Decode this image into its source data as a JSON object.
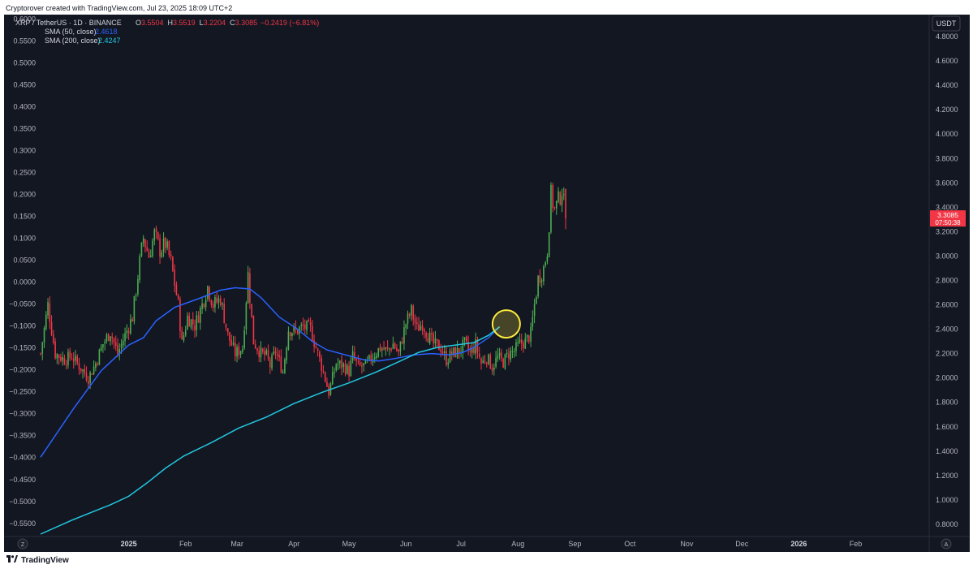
{
  "header": {
    "credit": "Cryptorover created with TradingView.com, Jul 23, 2025 18:09 UTC+2"
  },
  "footer": {
    "brand": "TradingView",
    "brand_icon": "tradingview-logo-icon"
  },
  "legend": {
    "symbol": "XRP / TetherUS · 1D · BINANCE",
    "ohlc": [
      {
        "key": "O",
        "value": "3.5504"
      },
      {
        "key": "H",
        "value": "3.5519"
      },
      {
        "key": "L",
        "value": "3.2204"
      },
      {
        "key": "C",
        "value": "3.3085"
      }
    ],
    "change": "−0.2419 (−6.81%)",
    "indicators": [
      {
        "label": "SMA (50, close)",
        "value": "2.4618",
        "color": "#2962ff"
      },
      {
        "label": "SMA (200, close)",
        "value": "2.4247",
        "color": "#22c7e0"
      }
    ]
  },
  "colors": {
    "up": "#4caf50",
    "down": "#f23645",
    "background": "#131722",
    "sma50": "#2962ff",
    "sma200": "#22c7e0",
    "highlight": "#ffeb3b"
  },
  "chart_data": {
    "type": "candlestick",
    "title": "XRP / TetherUS · 1D · BINANCE",
    "currency": "USDT",
    "last_price": {
      "value": "3.3085",
      "countdown": "07:50:38"
    },
    "right_axis": {
      "ticks": [
        "4.8000",
        "4.6000",
        "4.4000",
        "4.2000",
        "4.0000",
        "3.8000",
        "3.6000",
        "3.4000",
        "3.2000",
        "3.0000",
        "2.8000",
        "2.6000",
        "2.4000",
        "2.2000",
        "2.0000",
        "1.8000",
        "1.6000",
        "1.4000",
        "1.2000",
        "1.0000",
        "0.8000"
      ],
      "range": [
        0.7,
        4.98
      ]
    },
    "left_axis": {
      "ticks": [
        "0.6000",
        "0.5500",
        "0.5000",
        "0.4500",
        "0.4000",
        "0.3500",
        "0.3000",
        "0.2500",
        "0.2000",
        "0.1500",
        "0.1000",
        "0.0500",
        "0.0000",
        "−0.0500",
        "−0.1000",
        "−0.1500",
        "−0.2000",
        "−0.2500",
        "−0.3000",
        "−0.3500",
        "−0.4000",
        "−0.4500",
        "−0.5000",
        "−0.5500"
      ],
      "range": [
        -0.58,
        0.61
      ]
    },
    "x_axis": {
      "labels": [
        "Z",
        "2025",
        "Feb",
        "Mar",
        "Apr",
        "May",
        "Jun",
        "Jul",
        "Aug",
        "Sep",
        "Oct",
        "Nov",
        "Dec",
        "2026",
        "Feb",
        "A"
      ]
    },
    "x_range_days": [
      -48,
      436
    ],
    "day0": "2025-01-01",
    "series": [
      {
        "name": "SMA (50, close)",
        "color": "#2962ff",
        "points": [
          [
            -48,
            1.35
          ],
          [
            -30,
            1.75
          ],
          [
            -15,
            2.06
          ],
          [
            -5,
            2.2
          ],
          [
            0,
            2.27
          ],
          [
            8,
            2.33
          ],
          [
            15,
            2.47
          ],
          [
            25,
            2.58
          ],
          [
            38,
            2.65
          ],
          [
            50,
            2.72
          ],
          [
            58,
            2.74
          ],
          [
            66,
            2.73
          ],
          [
            72,
            2.66
          ],
          [
            82,
            2.5
          ],
          [
            92,
            2.4
          ],
          [
            100,
            2.3
          ],
          [
            108,
            2.23
          ],
          [
            118,
            2.19
          ],
          [
            128,
            2.15
          ],
          [
            136,
            2.14
          ],
          [
            145,
            2.16
          ],
          [
            155,
            2.19
          ],
          [
            165,
            2.2
          ],
          [
            175,
            2.19
          ],
          [
            182,
            2.21
          ],
          [
            188,
            2.25
          ],
          [
            196,
            2.33
          ],
          [
            202,
            2.42
          ]
        ]
      },
      {
        "name": "SMA (200, close)",
        "color": "#22c7e0",
        "points": [
          [
            -48,
            0.72
          ],
          [
            -30,
            0.84
          ],
          [
            -10,
            0.96
          ],
          [
            0,
            1.03
          ],
          [
            10,
            1.14
          ],
          [
            20,
            1.26
          ],
          [
            30,
            1.36
          ],
          [
            45,
            1.47
          ],
          [
            60,
            1.59
          ],
          [
            75,
            1.68
          ],
          [
            90,
            1.79
          ],
          [
            105,
            1.88
          ],
          [
            120,
            1.96
          ],
          [
            135,
            2.05
          ],
          [
            148,
            2.14
          ],
          [
            158,
            2.21
          ],
          [
            168,
            2.25
          ],
          [
            178,
            2.27
          ],
          [
            188,
            2.29
          ],
          [
            196,
            2.35
          ],
          [
            202,
            2.42
          ]
        ]
      }
    ],
    "close_path": [
      [
        -48,
        2.2
      ],
      [
        -44,
        2.6
      ],
      [
        -40,
        2.2
      ],
      [
        -35,
        2.15
      ],
      [
        -31,
        2.18
      ],
      [
        -27,
        2.1
      ],
      [
        -22,
        2.0
      ],
      [
        -18,
        2.12
      ],
      [
        -14,
        2.28
      ],
      [
        -10,
        2.38
      ],
      [
        -6,
        2.2
      ],
      [
        -2,
        2.35
      ],
      [
        2,
        2.5
      ],
      [
        6,
        2.95
      ],
      [
        8,
        3.15
      ],
      [
        11,
        3.0
      ],
      [
        14,
        3.18
      ],
      [
        17,
        3.05
      ],
      [
        20,
        3.1
      ],
      [
        23,
        2.95
      ],
      [
        27,
        2.6
      ],
      [
        29,
        2.28
      ],
      [
        32,
        2.5
      ],
      [
        36,
        2.43
      ],
      [
        40,
        2.6
      ],
      [
        43,
        2.75
      ],
      [
        46,
        2.6
      ],
      [
        50,
        2.65
      ],
      [
        54,
        2.35
      ],
      [
        58,
        2.2
      ],
      [
        62,
        2.25
      ],
      [
        65,
        2.85
      ],
      [
        68,
        2.3
      ],
      [
        72,
        2.2
      ],
      [
        75,
        2.18
      ],
      [
        77,
        2.1
      ],
      [
        80,
        2.22
      ],
      [
        84,
        2.05
      ],
      [
        87,
        2.4
      ],
      [
        91,
        2.38
      ],
      [
        95,
        2.42
      ],
      [
        99,
        2.4
      ],
      [
        103,
        2.2
      ],
      [
        106,
        2.05
      ],
      [
        109,
        1.88
      ],
      [
        113,
        2.12
      ],
      [
        117,
        2.1
      ],
      [
        120,
        2.05
      ],
      [
        122,
        2.18
      ],
      [
        125,
        2.09
      ],
      [
        129,
        2.1
      ],
      [
        133,
        2.18
      ],
      [
        137,
        2.25
      ],
      [
        141,
        2.22
      ],
      [
        144,
        2.28
      ],
      [
        147,
        2.2
      ],
      [
        151,
        2.45
      ],
      [
        154,
        2.55
      ],
      [
        157,
        2.4
      ],
      [
        160,
        2.45
      ],
      [
        163,
        2.35
      ],
      [
        166,
        2.28
      ],
      [
        170,
        2.25
      ],
      [
        173,
        2.15
      ],
      [
        176,
        2.2
      ],
      [
        180,
        2.22
      ],
      [
        183,
        2.28
      ],
      [
        186,
        2.2
      ],
      [
        189,
        2.27
      ],
      [
        192,
        2.12
      ],
      [
        195,
        2.17
      ],
      [
        198,
        2.09
      ],
      [
        201,
        2.17
      ],
      [
        204,
        2.13
      ],
      [
        207,
        2.2
      ],
      [
        210,
        2.22
      ],
      [
        213,
        2.28
      ],
      [
        216,
        2.3
      ],
      [
        219,
        2.36
      ],
      [
        221,
        2.6
      ],
      [
        223,
        2.81
      ],
      [
        226,
        2.9
      ],
      [
        228,
        3.05
      ],
      [
        230,
        3.5
      ],
      [
        232,
        3.38
      ],
      [
        234,
        3.45
      ],
      [
        236,
        3.55
      ],
      [
        238,
        3.3
      ]
    ],
    "candles": {
      "description": "daily OHLC candles, approx. Dec 2024 – Jul 23 2025, derived from close_path"
    },
    "highlight": {
      "x_day": 203,
      "y": 2.43
    }
  }
}
